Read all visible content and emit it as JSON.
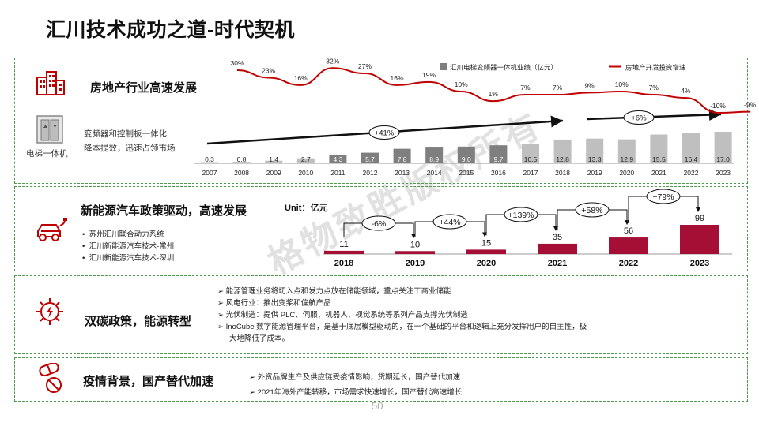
{
  "page": {
    "title": "汇川技术成功之道-时代契机",
    "page_number": "50",
    "watermark": "格物致胜版权所有"
  },
  "section1": {
    "heading": "房地产行业高速发展",
    "elevator_label": "电梯一体机",
    "desc_line1": "变频器和控制板一体化",
    "desc_line2": "降本提效，迅速占领市场",
    "icon_building": "building-icon",
    "icon_elevator": "elevator-icon"
  },
  "section2": {
    "heading": "新能源汽车政策驱动，高速发展",
    "unit": "Unit：亿元",
    "bullets": [
      "苏州汇川联合动力系统",
      "汇川新能源汽车技术-常州",
      "汇川新能源汽车技术-深圳"
    ],
    "icon": "electric-car-icon"
  },
  "section3": {
    "heading": "双碳政策，能源转型",
    "bullets": [
      "能源管理业务将切入点和发力点放在储能领域，重点关注工商业储能",
      "风电行业：推出变桨和偏航产品",
      "光伏制造：提供 PLC、伺服、机器人、视觉系统等系列产品支撑光伏制造",
      "InoCube 数字能源管理平台，是基于底层模型驱动的，在一个基础的平台和逻辑上充分发挥用户的自主性，极",
      "大地降低了成本。"
    ],
    "icon": "gear-energy-icon"
  },
  "section4": {
    "heading": "疫情背景，国产替代加速",
    "bullets": [
      "外资品牌生产及供应链受疫情影响，货期延长，国产替代加速",
      "2021年海外产能转移，市场需求快速增长，国产替代高速增长"
    ],
    "icon": "pills-icon"
  },
  "chart_data": [
    {
      "type": "bar",
      "legend": {
        "bar": "汇川电梯变频器一体机业绩（亿元）",
        "line": "房地产开发投资增速",
        "placement": "top-right"
      },
      "categories": [
        "2007",
        "2008",
        "2009",
        "2010",
        "2011",
        "2012",
        "2013",
        "2014",
        "2015",
        "2016",
        "2017",
        "2018",
        "2019",
        "2020",
        "2021",
        "2022",
        "2023"
      ],
      "series": [
        {
          "name": "汇川电梯变频器一体机业绩（亿元）",
          "type": "bar",
          "values": [
            0.3,
            0.8,
            1.4,
            2.7,
            4.3,
            5.7,
            7.8,
            8.9,
            9.0,
            9.7,
            10.5,
            12.8,
            13.3,
            12.9,
            15.5,
            16.4,
            17.0
          ],
          "labels": [
            "0.3",
            "0.8",
            "1.4",
            "2.7",
            "4.3",
            "5.7",
            "7.8",
            "8.9",
            "9.0",
            "9.7",
            "10.5",
            "12.8",
            "13.3",
            "12.9",
            "15.5",
            "16.4",
            "17.0"
          ]
        },
        {
          "name": "房地产开发投资增速",
          "type": "line",
          "values": [
            30,
            23,
            16,
            32,
            27,
            16,
            19,
            10,
            1,
            7,
            7,
            9,
            10,
            7,
            4,
            -10,
            -9
          ],
          "labels": [
            "30%",
            "23%",
            "16%",
            "32%",
            "27%",
            "16%",
            "19%",
            "10%",
            "1%",
            "7%",
            "7%",
            "9%",
            "10%",
            "7%",
            "4%",
            "-10%",
            "-9%"
          ]
        }
      ],
      "annotations": [
        "+41%",
        "+6%"
      ],
      "bar_color_dark": "#7f7f7f",
      "bar_color_light": "#bfbfbf",
      "line_color": "#c00000"
    },
    {
      "type": "bar",
      "categories": [
        "2018",
        "2019",
        "2020",
        "2021",
        "2022",
        "2023"
      ],
      "values": [
        11,
        10,
        15,
        35,
        56,
        99
      ],
      "labels": [
        "11",
        "10",
        "15",
        "35",
        "56",
        "99"
      ],
      "growth": [
        "-6%",
        "+44%",
        "+139%",
        "+58%",
        "+79%"
      ],
      "bar_color": "#a50f36"
    }
  ]
}
